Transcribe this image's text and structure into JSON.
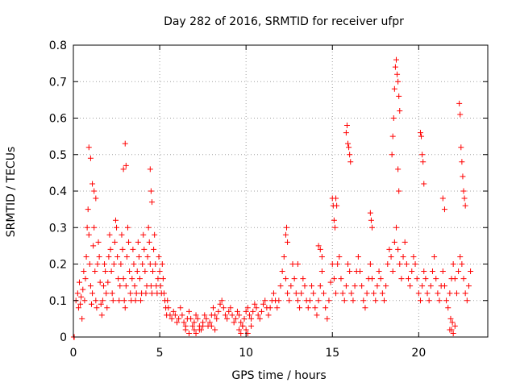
{
  "chart_data": {
    "type": "scatter",
    "title": "Day 282 of 2016, SRMTID for receiver ufpr",
    "xlabel": "GPS time / hours",
    "ylabel": "SRMTID / TECUs",
    "xlim": [
      0,
      24
    ],
    "ylim": [
      0,
      0.8
    ],
    "xticks": [
      0,
      5,
      10,
      15,
      20
    ],
    "xtick_labels": [
      "0",
      "5",
      "10",
      "15",
      "20"
    ],
    "yticks": [
      0,
      0.1,
      0.2,
      0.3,
      0.4,
      0.5,
      0.6,
      0.7,
      0.8
    ],
    "ytick_labels": [
      "0",
      "0.1",
      "0.2",
      "0.3",
      "0.4",
      "0.5",
      "0.6",
      "0.7",
      "0.8"
    ],
    "grid": true,
    "marker": "plus",
    "color": "#ff0000",
    "series": [
      {
        "name": "SRMTID",
        "x": [
          0.05,
          0.15,
          0.25,
          0.3,
          0.35,
          0.4,
          0.45,
          0.5,
          0.55,
          0.6,
          0.65,
          0.7,
          0.75,
          0.8,
          0.85,
          0.9,
          0.95,
          1.0,
          1.05,
          1.1,
          1.15,
          1.2,
          1.25,
          1.3,
          1.35,
          1.4,
          1.45,
          1.5,
          1.55,
          1.6,
          1.65,
          1.7,
          1.75,
          1.8,
          1.85,
          1.9,
          1.95,
          2.0,
          2.05,
          2.1,
          2.15,
          2.2,
          2.25,
          2.3,
          2.35,
          2.4,
          2.45,
          2.5,
          2.55,
          2.6,
          2.65,
          2.7,
          2.75,
          2.8,
          2.85,
          2.9,
          2.95,
          3.0,
          3.05,
          3.1,
          3.15,
          3.2,
          3.25,
          3.3,
          3.35,
          3.4,
          3.45,
          3.5,
          3.55,
          3.6,
          3.65,
          3.7,
          3.75,
          3.8,
          3.85,
          3.9,
          3.95,
          4.0,
          4.05,
          4.1,
          4.15,
          4.2,
          4.25,
          4.3,
          4.35,
          4.4,
          4.45,
          4.5,
          4.55,
          4.6,
          4.65,
          4.7,
          4.75,
          4.8,
          4.85,
          4.9,
          4.95,
          5.0,
          5.05,
          5.1,
          5.15,
          5.2,
          5.25,
          5.3,
          5.35,
          5.4,
          5.45,
          5.5,
          5.6,
          5.7,
          5.8,
          5.9,
          6.0,
          6.1,
          6.2,
          6.3,
          6.4,
          6.5,
          6.6,
          6.7,
          6.8,
          6.9,
          7.0,
          7.1,
          7.2,
          7.3,
          7.4,
          7.5,
          7.6,
          7.7,
          7.8,
          7.9,
          8.0,
          8.1,
          8.2,
          8.3,
          8.4,
          8.5,
          8.6,
          8.7,
          8.8,
          8.9,
          9.0,
          9.1,
          9.2,
          9.3,
          9.4,
          9.5,
          9.6,
          9.7,
          9.8,
          9.9,
          10.0,
          10.1,
          10.2,
          10.3,
          10.4,
          10.5,
          10.6,
          10.7,
          10.8,
          10.9,
          11.0,
          11.1,
          11.2,
          11.3,
          11.4,
          11.5,
          11.6,
          11.7,
          11.8,
          11.9,
          12.0,
          12.1,
          12.2,
          12.3,
          12.4,
          12.5,
          12.6,
          12.7,
          12.8,
          12.9,
          13.0,
          13.1,
          13.2,
          13.3,
          13.4,
          13.5,
          13.6,
          13.7,
          13.8,
          13.9,
          14.0,
          14.1,
          14.2,
          14.3,
          14.4,
          14.5,
          14.6,
          14.7,
          14.8,
          14.9,
          15.0,
          15.1,
          15.2,
          15.3,
          15.4,
          15.5,
          15.6,
          15.7,
          15.8,
          15.9,
          16.0,
          16.1,
          16.2,
          16.3,
          16.4,
          16.5,
          16.6,
          16.7,
          16.8,
          16.9,
          17.0,
          17.1,
          17.2,
          17.3,
          17.4,
          17.5,
          17.6,
          17.7,
          17.8,
          17.9,
          18.0,
          18.1,
          18.2,
          18.3,
          18.4,
          18.5,
          18.6,
          18.7,
          18.8,
          18.9,
          19.0,
          19.1,
          19.2,
          19.3,
          19.4,
          19.5,
          19.6,
          19.7,
          19.8,
          19.9,
          20.0,
          20.1,
          20.2,
          20.3,
          20.4,
          20.5,
          20.6,
          20.7,
          20.8,
          20.9,
          21.0,
          21.1,
          21.2,
          21.3,
          21.4,
          21.5,
          21.6,
          21.7,
          21.8,
          21.9,
          22.0,
          22.1,
          22.2,
          22.3,
          22.4,
          22.5,
          22.6,
          22.7,
          22.8,
          22.9,
          23.0,
          0.02,
          0.9,
          1.0,
          1.1,
          1.2,
          1.3,
          2.9,
          3.0,
          3.05,
          4.45,
          4.5,
          4.55,
          15.0,
          15.05,
          15.1,
          15.15,
          15.8,
          15.85,
          15.9,
          15.95,
          16.0,
          16.05,
          18.6,
          18.65,
          18.7,
          18.75,
          18.8,
          18.85,
          18.9,
          18.55,
          18.5,
          18.45,
          18.8,
          18.85,
          20.1,
          20.15,
          20.2,
          20.25,
          20.3,
          22.35,
          22.4,
          22.45,
          22.5,
          22.55,
          22.6,
          22.65,
          22.7,
          12.3,
          12.35,
          12.4,
          13.0,
          14.2,
          14.3,
          14.4,
          17.2,
          17.25,
          17.3,
          21.4,
          21.5,
          21.9,
          22.0,
          22.1,
          21.8,
          21.85,
          21.95,
          15.2,
          15.25,
          9.6,
          9.7,
          9.8,
          10.0,
          10.1,
          10.3,
          7.0,
          7.1,
          7.3,
          7.5,
          6.5,
          6.7,
          8.0,
          8.2
        ],
        "y": [
          0.0,
          0.1,
          0.12,
          0.08,
          0.15,
          0.09,
          0.11,
          0.05,
          0.13,
          0.18,
          0.1,
          0.16,
          0.22,
          0.3,
          0.35,
          0.28,
          0.2,
          0.14,
          0.09,
          0.12,
          0.25,
          0.3,
          0.18,
          0.1,
          0.08,
          0.2,
          0.26,
          0.22,
          0.15,
          0.09,
          0.06,
          0.1,
          0.14,
          0.2,
          0.18,
          0.12,
          0.08,
          0.15,
          0.22,
          0.28,
          0.24,
          0.18,
          0.12,
          0.1,
          0.2,
          0.26,
          0.32,
          0.3,
          0.22,
          0.16,
          0.1,
          0.14,
          0.2,
          0.28,
          0.24,
          0.16,
          0.1,
          0.08,
          0.14,
          0.22,
          0.3,
          0.26,
          0.18,
          0.12,
          0.1,
          0.16,
          0.24,
          0.2,
          0.14,
          0.1,
          0.12,
          0.18,
          0.26,
          0.22,
          0.16,
          0.1,
          0.12,
          0.2,
          0.28,
          0.24,
          0.18,
          0.12,
          0.14,
          0.22,
          0.3,
          0.26,
          0.2,
          0.14,
          0.12,
          0.18,
          0.24,
          0.28,
          0.2,
          0.14,
          0.12,
          0.16,
          0.22,
          0.18,
          0.14,
          0.12,
          0.2,
          0.16,
          0.12,
          0.1,
          0.08,
          0.06,
          0.1,
          0.08,
          0.06,
          0.05,
          0.07,
          0.06,
          0.04,
          0.05,
          0.08,
          0.06,
          0.04,
          0.03,
          0.05,
          0.07,
          0.05,
          0.03,
          0.04,
          0.06,
          0.05,
          0.03,
          0.02,
          0.04,
          0.06,
          0.05,
          0.03,
          0.04,
          0.06,
          0.08,
          0.06,
          0.05,
          0.07,
          0.09,
          0.1,
          0.08,
          0.06,
          0.05,
          0.07,
          0.08,
          0.06,
          0.04,
          0.05,
          0.07,
          0.06,
          0.04,
          0.03,
          0.05,
          0.07,
          0.08,
          0.06,
          0.05,
          0.07,
          0.09,
          0.08,
          0.06,
          0.05,
          0.07,
          0.09,
          0.1,
          0.08,
          0.06,
          0.08,
          0.1,
          0.12,
          0.1,
          0.08,
          0.1,
          0.14,
          0.18,
          0.22,
          0.16,
          0.12,
          0.1,
          0.14,
          0.2,
          0.16,
          0.12,
          0.1,
          0.08,
          0.12,
          0.16,
          0.14,
          0.1,
          0.08,
          0.1,
          0.14,
          0.12,
          0.08,
          0.06,
          0.1,
          0.14,
          0.18,
          0.12,
          0.08,
          0.05,
          0.1,
          0.15,
          0.2,
          0.16,
          0.12,
          0.2,
          0.22,
          0.16,
          0.12,
          0.1,
          0.14,
          0.2,
          0.18,
          0.12,
          0.1,
          0.14,
          0.18,
          0.22,
          0.18,
          0.14,
          0.1,
          0.08,
          0.12,
          0.16,
          0.2,
          0.16,
          0.12,
          0.1,
          0.14,
          0.18,
          0.16,
          0.12,
          0.1,
          0.14,
          0.2,
          0.24,
          0.22,
          0.18,
          0.26,
          0.3,
          0.24,
          0.2,
          0.16,
          0.22,
          0.26,
          0.2,
          0.16,
          0.14,
          0.18,
          0.22,
          0.2,
          0.16,
          0.12,
          0.1,
          0.14,
          0.18,
          0.16,
          0.12,
          0.1,
          0.14,
          0.18,
          0.22,
          0.16,
          0.12,
          0.1,
          0.14,
          0.18,
          0.14,
          0.1,
          0.08,
          0.12,
          0.16,
          0.2,
          0.16,
          0.12,
          0.18,
          0.22,
          0.2,
          0.16,
          0.12,
          0.1,
          0.14,
          0.18,
          0.0,
          0.52,
          0.49,
          0.42,
          0.4,
          0.38,
          0.46,
          0.53,
          0.47,
          0.46,
          0.4,
          0.37,
          0.38,
          0.36,
          0.32,
          0.3,
          0.56,
          0.58,
          0.53,
          0.52,
          0.5,
          0.48,
          0.68,
          0.74,
          0.76,
          0.72,
          0.7,
          0.66,
          0.62,
          0.6,
          0.55,
          0.5,
          0.46,
          0.4,
          0.56,
          0.55,
          0.5,
          0.48,
          0.42,
          0.64,
          0.61,
          0.52,
          0.48,
          0.44,
          0.4,
          0.38,
          0.36,
          0.28,
          0.3,
          0.26,
          0.2,
          0.25,
          0.24,
          0.22,
          0.34,
          0.32,
          0.3,
          0.38,
          0.35,
          0.02,
          0.01,
          0.03,
          0.02,
          0.05,
          0.04,
          0.38,
          0.36,
          0.02,
          0.01,
          0.03,
          0.02,
          0.01,
          0.03,
          0.02,
          0.01,
          0.02,
          0.03,
          0.02,
          0.01,
          0.03,
          0.02
        ]
      }
    ]
  }
}
